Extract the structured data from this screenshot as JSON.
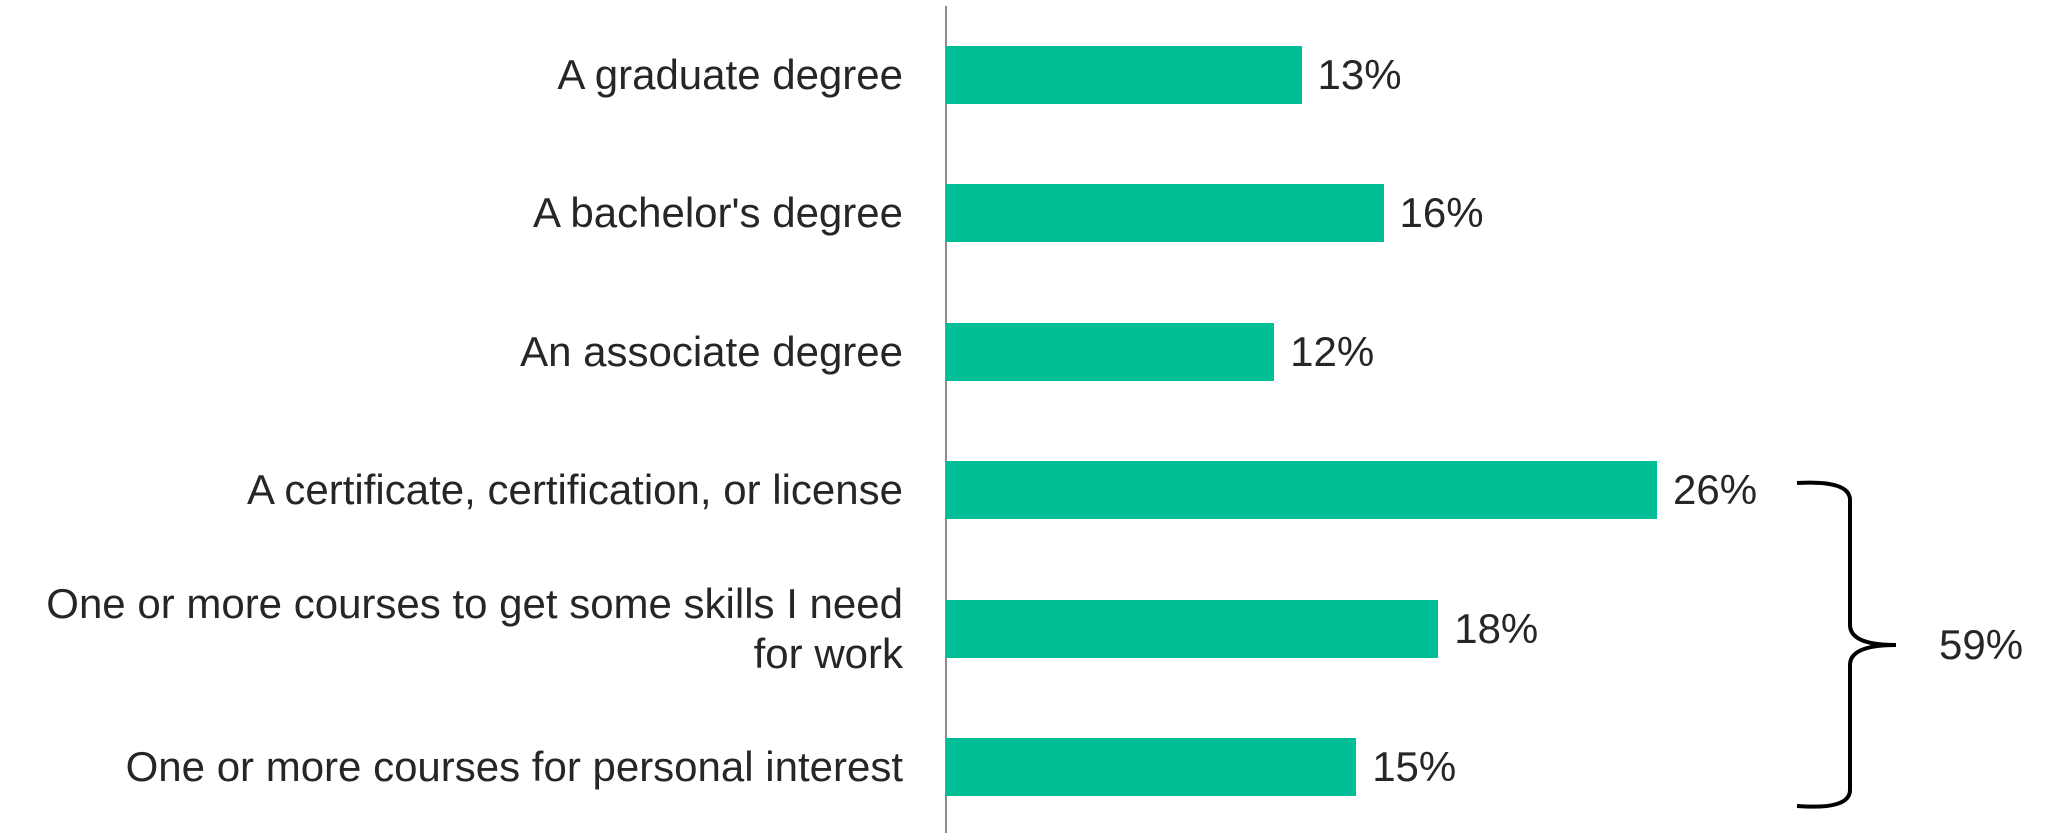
{
  "chart_data": {
    "type": "bar",
    "orientation": "horizontal",
    "categories": [
      "A graduate degree",
      "A bachelor's degree",
      "An associate degree",
      "A certificate, certification, or license",
      "One or more courses to get some skills I need for work",
      "One or more courses for personal interest"
    ],
    "values": [
      13,
      16,
      12,
      26,
      18,
      15
    ],
    "value_labels": [
      "13%",
      "16%",
      "12%",
      "26%",
      "18%",
      "15%"
    ],
    "color": "#00bf96",
    "annotation": "59%"
  }
}
